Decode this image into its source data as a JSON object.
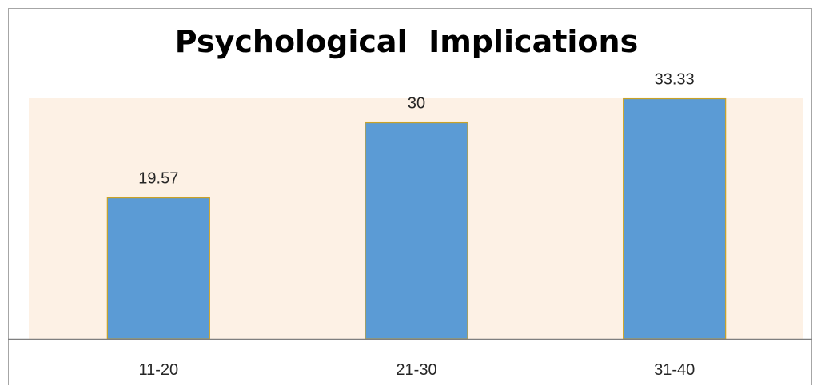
{
  "chart_data": {
    "type": "bar",
    "title": "Psychological  Implications",
    "categories": [
      "11-20",
      "21-30",
      "31-40"
    ],
    "values": [
      19.57,
      30,
      33.33
    ],
    "value_labels": [
      "19.57",
      "30",
      "33.33"
    ],
    "xlabel": "",
    "ylabel": "",
    "ylim": [
      0,
      34.5
    ],
    "grid": false,
    "legend": "none",
    "colors": {
      "bar_fill": "#5b9bd5",
      "bar_stroke": "#c9a227",
      "plot_background": "#fdf1e5",
      "axis_line": "#7f7f7f"
    }
  }
}
